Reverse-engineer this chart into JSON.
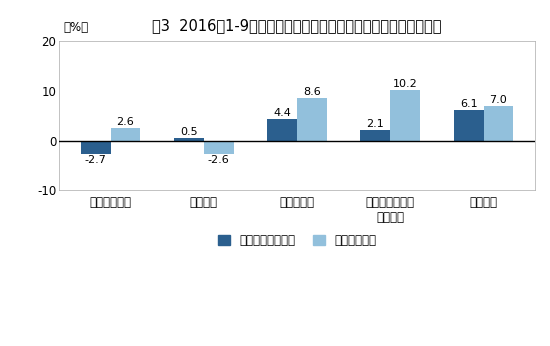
{
  "title": "图3  2016年1-9月份分经济类型主营业务收入与利润总额同比增速",
  "ylabel": "（%）",
  "categories": [
    "国有控股企业",
    "集体企业",
    "股份制企业",
    "外商及港澳台商\n投资企业",
    "私营企业"
  ],
  "series1_label": "主营业务收入增速",
  "series2_label": "利润总额增速",
  "series1_values": [
    -2.7,
    0.5,
    4.4,
    2.1,
    6.1
  ],
  "series2_values": [
    2.6,
    -2.6,
    8.6,
    10.2,
    7.0
  ],
  "series1_color": "#2B5F8E",
  "series2_color": "#92C0DC",
  "ylim": [
    -10,
    20
  ],
  "yticks": [
    -10,
    0,
    10,
    20
  ],
  "bar_width": 0.32,
  "bg_color": "#FFFFFF",
  "plot_bg_color": "#FFFFFF",
  "title_fontsize": 10.5,
  "label_fontsize": 8.5,
  "tick_fontsize": 8.5,
  "annotation_fontsize": 8.0
}
